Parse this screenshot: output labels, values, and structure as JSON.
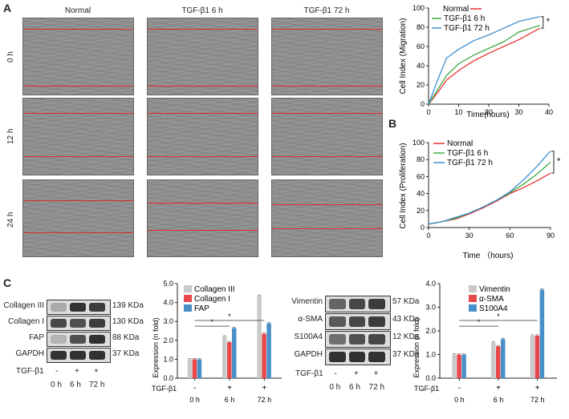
{
  "panels": {
    "a": "A",
    "b": "B",
    "c": "C"
  },
  "microscopy": {
    "columns": [
      "Normal",
      "TGF-β1 6 h",
      "TGF-β1 72 h"
    ],
    "rows": [
      "0 h",
      "12 h",
      "24 h"
    ]
  },
  "colors": {
    "normal": "#e8332f",
    "tgf6": "#3daa43",
    "tgf72": "#3d8fd1",
    "collagen3": "#c9c9c9",
    "collagen1": "#e8474b",
    "fap": "#4a90c8"
  },
  "chart_data": [
    {
      "type": "line",
      "id": "migration",
      "xlabel": "Time(hours)",
      "ylabel": "Cell Index (Migration)",
      "xlim": [
        0,
        40
      ],
      "ylim": [
        0,
        100
      ],
      "xticks": [
        "0",
        "10",
        "20",
        "30",
        "40"
      ],
      "yticks": [
        "0",
        "20",
        "40",
        "60",
        "80",
        "100"
      ],
      "legend": [
        "Normal",
        "TGF-β1 6 h",
        "TGF-β1 72 h"
      ],
      "significance": "*",
      "series": [
        {
          "name": "Normal",
          "x": [
            0,
            3,
            6,
            10,
            15,
            20,
            25,
            30,
            37
          ],
          "y": [
            0,
            12,
            25,
            35,
            45,
            53,
            60,
            67,
            79
          ]
        },
        {
          "name": "TGF-β1 6 h",
          "x": [
            0,
            3,
            6,
            10,
            15,
            20,
            25,
            30,
            37
          ],
          "y": [
            0,
            15,
            30,
            42,
            51,
            58,
            65,
            75,
            82
          ]
        },
        {
          "name": "TGF-β1 72 h",
          "x": [
            0,
            3,
            6,
            10,
            15,
            20,
            25,
            30,
            37
          ],
          "y": [
            0,
            25,
            48,
            57,
            66,
            72,
            79,
            86,
            91
          ]
        }
      ]
    },
    {
      "type": "line",
      "id": "proliferation",
      "xlabel": "Time （hours)",
      "ylabel": "Cell Index (Proliferation)",
      "xlim": [
        0,
        90
      ],
      "ylim": [
        0,
        100
      ],
      "xticks": [
        "0",
        "30",
        "60",
        "90"
      ],
      "yticks": [
        "0",
        "20",
        "40",
        "60",
        "80",
        "100"
      ],
      "legend": [
        "Normal",
        "TGF-β1 6 h",
        "TGF-β1 72 h"
      ],
      "significance": "*",
      "series": [
        {
          "name": "Normal",
          "x": [
            0,
            10,
            20,
            30,
            40,
            50,
            60,
            70,
            80,
            90
          ],
          "y": [
            4,
            7,
            10,
            16,
            23,
            31,
            40,
            47,
            55,
            64
          ]
        },
        {
          "name": "TGF-β1 6 h",
          "x": [
            0,
            10,
            20,
            30,
            40,
            50,
            60,
            70,
            80,
            90
          ],
          "y": [
            4,
            7,
            11,
            17,
            24,
            32,
            41,
            51,
            63,
            77
          ]
        },
        {
          "name": "TGF-β1 72 h",
          "x": [
            0,
            10,
            20,
            30,
            40,
            50,
            60,
            70,
            80,
            90
          ],
          "y": [
            4,
            7,
            12,
            17,
            24,
            32,
            42,
            56,
            72,
            90
          ]
        }
      ]
    },
    {
      "type": "bar",
      "id": "collagen",
      "ylabel": "Expression (n fold)",
      "ylim": [
        0,
        5
      ],
      "yticks": [
        "0.0",
        "1.0",
        "2.0",
        "3.0",
        "4.0",
        "5.0"
      ],
      "categories": [
        "0 h",
        "6 h",
        "72 h"
      ],
      "treatment_label": "TGF-β1",
      "treatment": [
        "-",
        "+",
        "+"
      ],
      "significance": [
        "*",
        "*"
      ],
      "series": [
        {
          "name": "Collagen III",
          "values": [
            1.0,
            2.2,
            4.35
          ]
        },
        {
          "name": "Collagen I",
          "values": [
            1.0,
            1.9,
            2.35
          ]
        },
        {
          "name": "FAP",
          "values": [
            1.0,
            2.65,
            2.9
          ]
        }
      ]
    },
    {
      "type": "bar",
      "id": "markers",
      "ylabel": "Expression (n fold)",
      "ylim": [
        0,
        4
      ],
      "yticks": [
        "0.0",
        "1.0",
        "2.0",
        "3.0",
        "4.0"
      ],
      "categories": [
        "0 h",
        "6 h",
        "72 h"
      ],
      "treatment_label": "TGF-β1",
      "treatment": [
        "-",
        "+",
        "+"
      ],
      "significance": [
        "*",
        "*"
      ],
      "series": [
        {
          "name": "Vimentin",
          "values": [
            1.0,
            1.52,
            1.8
          ]
        },
        {
          "name": "α-SMA",
          "values": [
            1.0,
            1.35,
            1.8
          ]
        },
        {
          "name": "S100A4",
          "values": [
            1.0,
            1.65,
            3.75
          ]
        }
      ]
    }
  ],
  "blot1": {
    "rows": [
      {
        "label": "Collagen III",
        "kda": "139 KDa"
      },
      {
        "label": "Collagen I",
        "kda": "130 KDa"
      },
      {
        "label": "FAP",
        "kda": "88 KDa"
      },
      {
        "label": "GAPDH",
        "kda": "37 KDa"
      }
    ],
    "treatment_label": "TGF-β1",
    "treatment": [
      "-",
      "+",
      "+"
    ],
    "times": [
      "0 h",
      "6 h",
      "72 h"
    ]
  },
  "blot2": {
    "rows": [
      {
        "label": "Vimentin",
        "kda": "57 KDa"
      },
      {
        "label": "α-SMA",
        "kda": "43 KDa"
      },
      {
        "label": "S100A4",
        "kda": "12 KDa"
      },
      {
        "label": "GAPDH",
        "kda": "37 KDa"
      }
    ],
    "treatment_label": "TGF-β1",
    "treatment": [
      "-",
      "+",
      "+"
    ],
    "times": [
      "0 h",
      "6 h",
      "72 h"
    ]
  }
}
